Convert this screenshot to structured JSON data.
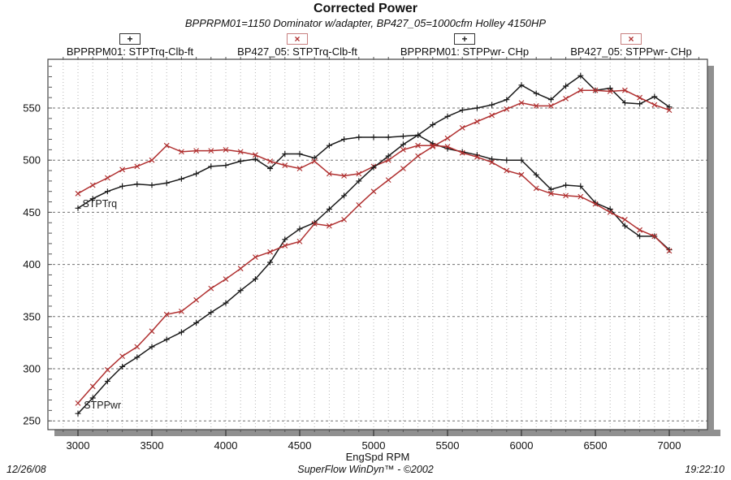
{
  "header": {
    "title": "Corrected Power",
    "subtitle": "BPPRPM01=1150 Dominator w/adapter, BP427_05=1000cfm Holley 4150HP"
  },
  "legend": {
    "items": [
      {
        "glyph": "+",
        "label": "BPPRPM01: STPTrq-Clb-ft",
        "glyph_color": "#1a1a1a",
        "box_color": "#333333"
      },
      {
        "glyph": "×",
        "label": "BP427_05: STPTrq-Clb-ft",
        "glyph_color": "#b03030",
        "box_color": "#c88080"
      },
      {
        "glyph": "+",
        "label": "BPPRPM01: STPPwr- CHp",
        "glyph_color": "#1a1a1a",
        "box_color": "#333333"
      },
      {
        "glyph": "×",
        "label": "BP427_05: STPPwr- CHp",
        "glyph_color": "#b03030",
        "box_color": "#c88080"
      }
    ]
  },
  "footer": {
    "date": "12/26/08",
    "center": "SuperFlow WinDyn™ - ©2002",
    "time": "19:22:10"
  },
  "style": {
    "black": "#1a1a1a",
    "red": "#b03030",
    "frame": "#444444",
    "grid_minor": "#b4b4b4",
    "grid_major": "#707070",
    "shadow": "#909090",
    "tick_color": "#555555",
    "text_color": "#111111"
  },
  "chart_data": {
    "type": "line",
    "title": "Corrected Power",
    "xlabel": "EngSpd RPM",
    "ylabel": "",
    "xlim": [
      2800,
      7260
    ],
    "ylim": [
      242,
      596
    ],
    "x_ticks": [
      3000,
      3500,
      4000,
      4500,
      5000,
      5500,
      6000,
      6500,
      7000
    ],
    "y_ticks": [
      250,
      300,
      350,
      400,
      450,
      500,
      550
    ],
    "grid": true,
    "legend_position": "top",
    "x": [
      3000,
      3100,
      3200,
      3300,
      3400,
      3500,
      3600,
      3700,
      3800,
      3900,
      4000,
      4100,
      4200,
      4300,
      4400,
      4500,
      4600,
      4700,
      4800,
      4900,
      5000,
      5100,
      5200,
      5300,
      5400,
      5500,
      5600,
      5700,
      5800,
      5900,
      6000,
      6100,
      6200,
      6300,
      6400,
      6500,
      6600,
      6700,
      6800,
      6900,
      7000
    ],
    "series": [
      {
        "name": "BPPRPM01: STPTrq-Clb-ft",
        "marker": "plus",
        "color": "#1a1a1a",
        "values": [
          454,
          463,
          470,
          475,
          477,
          476,
          478,
          482,
          487,
          494,
          495,
          499,
          501,
          492,
          506,
          506,
          502,
          514,
          520,
          522,
          522,
          522,
          523,
          524,
          516,
          511,
          508,
          505,
          501,
          500,
          500,
          486,
          472,
          476,
          475,
          459,
          453,
          437,
          427,
          427,
          414
        ]
      },
      {
        "name": "BP427_05: STPTrq-Clb-ft",
        "marker": "cross",
        "color": "#b03030",
        "values": [
          468,
          476,
          483,
          491,
          494,
          500,
          514,
          508,
          509,
          509,
          510,
          508,
          505,
          499,
          495,
          492,
          499,
          487,
          485,
          487,
          494,
          500,
          510,
          514,
          514,
          513,
          507,
          503,
          498,
          490,
          486,
          473,
          468,
          466,
          465,
          458,
          450,
          443,
          433,
          427,
          413
        ]
      },
      {
        "name": "BPPRPM01: STPPwr- CHp",
        "marker": "plus",
        "color": "#1a1a1a",
        "values": [
          257,
          272,
          288,
          302,
          311,
          321,
          328,
          335,
          344,
          354,
          363,
          375,
          386,
          402,
          424,
          434,
          440,
          453,
          466,
          480,
          493,
          504,
          515,
          524,
          534,
          542,
          548,
          550,
          553,
          558,
          572,
          564,
          558,
          571,
          581,
          567,
          569,
          555,
          554,
          561,
          551
        ]
      },
      {
        "name": "BP427_05: STPPwr- CHp",
        "marker": "cross",
        "color": "#b03030",
        "values": [
          267,
          283,
          299,
          312,
          321,
          336,
          352,
          355,
          366,
          377,
          386,
          396,
          407,
          412,
          418,
          422,
          439,
          437,
          443,
          457,
          470,
          481,
          492,
          504,
          513,
          521,
          531,
          537,
          543,
          549,
          555,
          552,
          552,
          559,
          567,
          567,
          566,
          567,
          560,
          553,
          548
        ]
      }
    ],
    "annotations": [
      {
        "text": "STPTrq",
        "rpm": 3030,
        "value": 455
      },
      {
        "text": "STPPwr",
        "rpm": 3040,
        "value": 262
      }
    ]
  }
}
